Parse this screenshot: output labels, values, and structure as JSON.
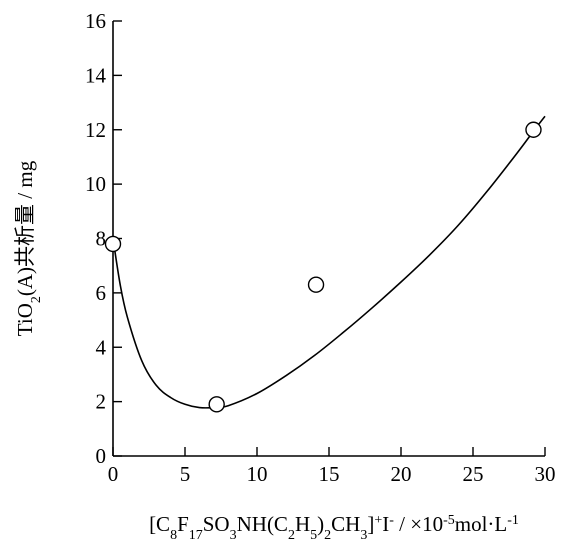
{
  "chart_data": {
    "type": "scatter",
    "title": "",
    "xlabel_parts": [
      {
        "t": "[C",
        "s": ""
      },
      {
        "t": "8",
        "s": "sub"
      },
      {
        "t": "F",
        "s": ""
      },
      {
        "t": "17",
        "s": "sub"
      },
      {
        "t": "SO",
        "s": ""
      },
      {
        "t": "3",
        "s": "sub"
      },
      {
        "t": "NH(C",
        "s": ""
      },
      {
        "t": "2",
        "s": "sub"
      },
      {
        "t": "H",
        "s": ""
      },
      {
        "t": "5",
        "s": "sub"
      },
      {
        "t": ")",
        "s": ""
      },
      {
        "t": "2",
        "s": "sub"
      },
      {
        "t": "CH",
        "s": ""
      },
      {
        "t": "3",
        "s": "sub"
      },
      {
        "t": "]",
        "s": ""
      },
      {
        "t": "+",
        "s": "sup"
      },
      {
        "t": "I",
        "s": ""
      },
      {
        "t": "-",
        "s": "sup"
      },
      {
        "t": " / ×10",
        "s": ""
      },
      {
        "t": "-5",
        "s": "sup"
      },
      {
        "t": "mol·L",
        "s": ""
      },
      {
        "t": "-1",
        "s": "sup"
      }
    ],
    "ylabel_parts": [
      {
        "t": "TiO",
        "s": ""
      },
      {
        "t": "2",
        "s": "sub"
      },
      {
        "t": "(A)共析量 / mg",
        "s": ""
      }
    ],
    "xlim": [
      0,
      30
    ],
    "ylim": [
      0,
      16
    ],
    "xticks": [
      0,
      5,
      10,
      15,
      20,
      25,
      30
    ],
    "yticks": [
      0,
      2,
      4,
      6,
      8,
      10,
      12,
      14,
      16
    ],
    "grid": false,
    "points": [
      {
        "x": 0,
        "y": 7.8
      },
      {
        "x": 7.2,
        "y": 1.9
      },
      {
        "x": 14.1,
        "y": 6.3
      },
      {
        "x": 29.2,
        "y": 12.0
      }
    ],
    "fit_curve": [
      [
        0,
        8.0
      ],
      [
        0.5,
        6.3
      ],
      [
        1.0,
        5.1
      ],
      [
        2.0,
        3.5
      ],
      [
        3.0,
        2.6
      ],
      [
        4.0,
        2.15
      ],
      [
        5.0,
        1.9
      ],
      [
        6.0,
        1.78
      ],
      [
        7.0,
        1.78
      ],
      [
        8.0,
        1.85
      ],
      [
        10.0,
        2.3
      ],
      [
        12.0,
        2.95
      ],
      [
        14.0,
        3.7
      ],
      [
        16.0,
        4.55
      ],
      [
        18.0,
        5.45
      ],
      [
        20.0,
        6.4
      ],
      [
        22.0,
        7.4
      ],
      [
        24.0,
        8.5
      ],
      [
        26.0,
        9.75
      ],
      [
        28.0,
        11.1
      ],
      [
        29.2,
        11.95
      ],
      [
        30.0,
        12.5
      ]
    ]
  }
}
